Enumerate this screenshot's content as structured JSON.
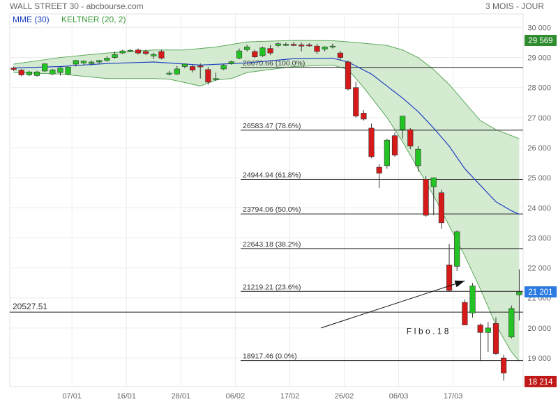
{
  "header": {
    "title": "WALL STREET 30 - abcbourse.com",
    "period": "3 MOIS - JOUR"
  },
  "legend": {
    "mme": "MME (30)",
    "keltner": "KELTNER (20, 2)"
  },
  "colors": {
    "up": "#22c322",
    "down": "#d61a1a",
    "mme": "#1f3fbf",
    "keltner_fill": "#cfe9cd",
    "keltner_line": "#5aa85a",
    "last_badge": "#2a7ae2",
    "high_badge": "#2e8b2e",
    "low_badge": "#c01818"
  },
  "chart_data": {
    "type": "candlestick",
    "title": "WALL STREET 30 - abcbourse.com",
    "period": "3 MOIS - JOUR",
    "y_ticks": [
      "30 000",
      "29 000",
      "28 000",
      "27 000",
      "26 000",
      "25 000",
      "24 000",
      "23 000",
      "22 000",
      "21 000",
      "20 000",
      "19 000"
    ],
    "y_tick_values": [
      30000,
      29000,
      28000,
      27000,
      26000,
      25000,
      24000,
      23000,
      22000,
      21000,
      20000,
      19000
    ],
    "ylim": [
      18050,
      30450
    ],
    "x_ticks": [
      "07/01",
      "16/01",
      "28/01",
      "06/02",
      "17/02",
      "26/02",
      "06/03",
      "17/03"
    ],
    "x_tick_index": [
      7.5,
      14.5,
      21.5,
      28.5,
      35.5,
      42.5,
      49.5,
      56.5
    ],
    "badges": {
      "high": "29 569",
      "last": "21 201",
      "low": "18 214"
    },
    "badge_values": {
      "high": 29569,
      "last": 21201,
      "low": 18214
    },
    "horizontal_line": {
      "label": "20527.51",
      "value": 20527.51
    },
    "fibonacci": [
      {
        "label": "28670.66  (100.0%)",
        "value": 28670.66
      },
      {
        "label": "26583.47  (78.6%)",
        "value": 26583.47
      },
      {
        "label": "24944.94  (61.8%)",
        "value": 24944.94
      },
      {
        "label": "23794.06  (50.0%)",
        "value": 23794.06
      },
      {
        "label": "22643.18  (38.2%)",
        "value": 22643.18
      },
      {
        "label": "21219.21  (23.6%)",
        "value": 21219.21
      },
      {
        "label": "18917.46  (0.0%)",
        "value": 18917.46
      }
    ],
    "annotation": {
      "text": "F I b o . 1 8",
      "arrow_from": [
        39.5,
        20000
      ],
      "arrow_to": [
        58,
        21570
      ]
    },
    "candles": [
      {
        "o": 28650,
        "h": 28700,
        "l": 28550,
        "c": 28600
      },
      {
        "o": 28580,
        "h": 28620,
        "l": 28380,
        "c": 28420
      },
      {
        "o": 28420,
        "h": 28560,
        "l": 28380,
        "c": 28520
      },
      {
        "o": 28400,
        "h": 28560,
        "l": 28360,
        "c": 28520
      },
      {
        "o": 28550,
        "h": 28800,
        "l": 28520,
        "c": 28790
      },
      {
        "o": 28450,
        "h": 28620,
        "l": 28420,
        "c": 28590
      },
      {
        "o": 28500,
        "h": 28680,
        "l": 28400,
        "c": 28650
      },
      {
        "o": 28450,
        "h": 28700,
        "l": 28420,
        "c": 28680
      },
      {
        "o": 28780,
        "h": 28920,
        "l": 28700,
        "c": 28900
      },
      {
        "o": 28820,
        "h": 28900,
        "l": 28760,
        "c": 28880
      },
      {
        "o": 28800,
        "h": 28900,
        "l": 28740,
        "c": 28850
      },
      {
        "o": 28850,
        "h": 28920,
        "l": 28800,
        "c": 28900
      },
      {
        "o": 28900,
        "h": 29050,
        "l": 28860,
        "c": 28980
      },
      {
        "o": 29000,
        "h": 29200,
        "l": 28960,
        "c": 29100
      },
      {
        "o": 29150,
        "h": 29260,
        "l": 29120,
        "c": 29220
      },
      {
        "o": 29220,
        "h": 29280,
        "l": 29180,
        "c": 29240
      },
      {
        "o": 29250,
        "h": 29300,
        "l": 29100,
        "c": 29150
      },
      {
        "o": 29200,
        "h": 29260,
        "l": 29080,
        "c": 29130
      },
      {
        "o": 29050,
        "h": 29160,
        "l": 28950,
        "c": 29100
      },
      {
        "o": 29200,
        "h": 29260,
        "l": 28940,
        "c": 28980
      },
      {
        "o": 28480,
        "h": 28560,
        "l": 28400,
        "c": 28480
      },
      {
        "o": 28450,
        "h": 28720,
        "l": 28420,
        "c": 28620
      },
      {
        "o": 28700,
        "h": 28800,
        "l": 28640,
        "c": 28780
      },
      {
        "o": 28700,
        "h": 28760,
        "l": 28500,
        "c": 28580
      },
      {
        "o": 28720,
        "h": 28800,
        "l": 28300,
        "c": 28700
      },
      {
        "o": 28600,
        "h": 28680,
        "l": 28100,
        "c": 28180
      },
      {
        "o": 28260,
        "h": 28500,
        "l": 28220,
        "c": 28300
      },
      {
        "o": 28620,
        "h": 28780,
        "l": 28580,
        "c": 28740
      },
      {
        "o": 28800,
        "h": 28900,
        "l": 28760,
        "c": 28860
      },
      {
        "o": 28980,
        "h": 29300,
        "l": 28940,
        "c": 29220
      },
      {
        "o": 29260,
        "h": 29420,
        "l": 29200,
        "c": 29350
      },
      {
        "o": 29200,
        "h": 29260,
        "l": 28980,
        "c": 29020
      },
      {
        "o": 29060,
        "h": 29360,
        "l": 29020,
        "c": 29320
      },
      {
        "o": 29300,
        "h": 29420,
        "l": 29080,
        "c": 29150
      },
      {
        "o": 29400,
        "h": 29500,
        "l": 29340,
        "c": 29460
      },
      {
        "o": 29420,
        "h": 29500,
        "l": 29380,
        "c": 29440
      },
      {
        "o": 29440,
        "h": 29520,
        "l": 29380,
        "c": 29400
      },
      {
        "o": 29420,
        "h": 29500,
        "l": 29200,
        "c": 29380
      },
      {
        "o": 29420,
        "h": 29480,
        "l": 29360,
        "c": 29400
      },
      {
        "o": 29380,
        "h": 29460,
        "l": 29120,
        "c": 29200
      },
      {
        "o": 29280,
        "h": 29380,
        "l": 29200,
        "c": 29350
      },
      {
        "o": 29360,
        "h": 29460,
        "l": 29300,
        "c": 29380
      },
      {
        "o": 29150,
        "h": 29220,
        "l": 28900,
        "c": 29000
      },
      {
        "o": 28850,
        "h": 28900,
        "l": 27900,
        "c": 27950
      },
      {
        "o": 28000,
        "h": 28200,
        "l": 27000,
        "c": 27050
      },
      {
        "o": 27150,
        "h": 27250,
        "l": 26900,
        "c": 26950
      },
      {
        "o": 26650,
        "h": 26800,
        "l": 25650,
        "c": 25700
      },
      {
        "o": 25350,
        "h": 25450,
        "l": 24650,
        "c": 25150
      },
      {
        "o": 25400,
        "h": 26300,
        "l": 25300,
        "c": 26250
      },
      {
        "o": 26400,
        "h": 26500,
        "l": 25700,
        "c": 25750
      },
      {
        "o": 26600,
        "h": 27050,
        "l": 26300,
        "c": 27050
      },
      {
        "o": 26600,
        "h": 26650,
        "l": 25950,
        "c": 26050
      },
      {
        "o": 25400,
        "h": 26050,
        "l": 25200,
        "c": 25950
      },
      {
        "o": 24950,
        "h": 25050,
        "l": 23700,
        "c": 23750
      },
      {
        "o": 24700,
        "h": 25000,
        "l": 23750,
        "c": 25000
      },
      {
        "o": 24500,
        "h": 24600,
        "l": 23300,
        "c": 23500
      },
      {
        "o": 22100,
        "h": 22800,
        "l": 21200,
        "c": 21250
      },
      {
        "o": 22050,
        "h": 23250,
        "l": 21900,
        "c": 23200
      },
      {
        "o": 20850,
        "h": 20950,
        "l": 20100,
        "c": 20100
      },
      {
        "o": 20500,
        "h": 21500,
        "l": 20350,
        "c": 21400
      },
      {
        "o": 20100,
        "h": 20150,
        "l": 18900,
        "c": 19850
      },
      {
        "o": 19850,
        "h": 20200,
        "l": 19200,
        "c": 20000
      },
      {
        "o": 20150,
        "h": 20350,
        "l": 19100,
        "c": 19150
      },
      {
        "o": 19000,
        "h": 19100,
        "l": 18250,
        "c": 18500
      },
      {
        "o": 19700,
        "h": 20750,
        "l": 19650,
        "c": 20650
      },
      {
        "o": 21100,
        "h": 21950,
        "l": 20250,
        "c": 21201
      }
    ],
    "mme": [
      [
        0,
        28650
      ],
      [
        6,
        28700
      ],
      [
        12,
        28800
      ],
      [
        18,
        28850
      ],
      [
        24,
        28750
      ],
      [
        30,
        28820
      ],
      [
        36,
        28960
      ],
      [
        41,
        28980
      ],
      [
        43,
        28850
      ],
      [
        46,
        28450
      ],
      [
        48,
        28050
      ],
      [
        50,
        27650
      ],
      [
        52,
        27200
      ],
      [
        54,
        26650
      ],
      [
        56,
        26050
      ],
      [
        58,
        25300
      ],
      [
        60,
        24750
      ],
      [
        62,
        24200
      ],
      [
        64,
        23900
      ],
      [
        65,
        23780
      ]
    ],
    "keltner_upper": [
      [
        0,
        28780
      ],
      [
        6,
        29000
      ],
      [
        12,
        29150
      ],
      [
        18,
        29250
      ],
      [
        22,
        29250
      ],
      [
        26,
        29350
      ],
      [
        30,
        29520
      ],
      [
        36,
        29570
      ],
      [
        41,
        29560
      ],
      [
        44,
        29500
      ],
      [
        46,
        29450
      ],
      [
        48,
        29400
      ],
      [
        50,
        29250
      ],
      [
        52,
        29000
      ],
      [
        54,
        28600
      ],
      [
        56,
        28100
      ],
      [
        58,
        27500
      ],
      [
        60,
        26900
      ],
      [
        62,
        26600
      ],
      [
        64,
        26400
      ],
      [
        65,
        26300
      ]
    ],
    "keltner_lower": [
      [
        0,
        28500
      ],
      [
        6,
        28450
      ],
      [
        12,
        28300
      ],
      [
        18,
        28300
      ],
      [
        20,
        28280
      ],
      [
        24,
        28050
      ],
      [
        26,
        28250
      ],
      [
        28,
        28300
      ],
      [
        30,
        28500
      ],
      [
        36,
        28700
      ],
      [
        41,
        28750
      ],
      [
        43,
        28600
      ],
      [
        45,
        28000
      ],
      [
        48,
        27000
      ],
      [
        50,
        26200
      ],
      [
        52,
        25300
      ],
      [
        54,
        24400
      ],
      [
        56,
        23400
      ],
      [
        58,
        22400
      ],
      [
        60,
        21300
      ],
      [
        62,
        20100
      ],
      [
        64,
        19200
      ],
      [
        65,
        18900
      ]
    ]
  }
}
